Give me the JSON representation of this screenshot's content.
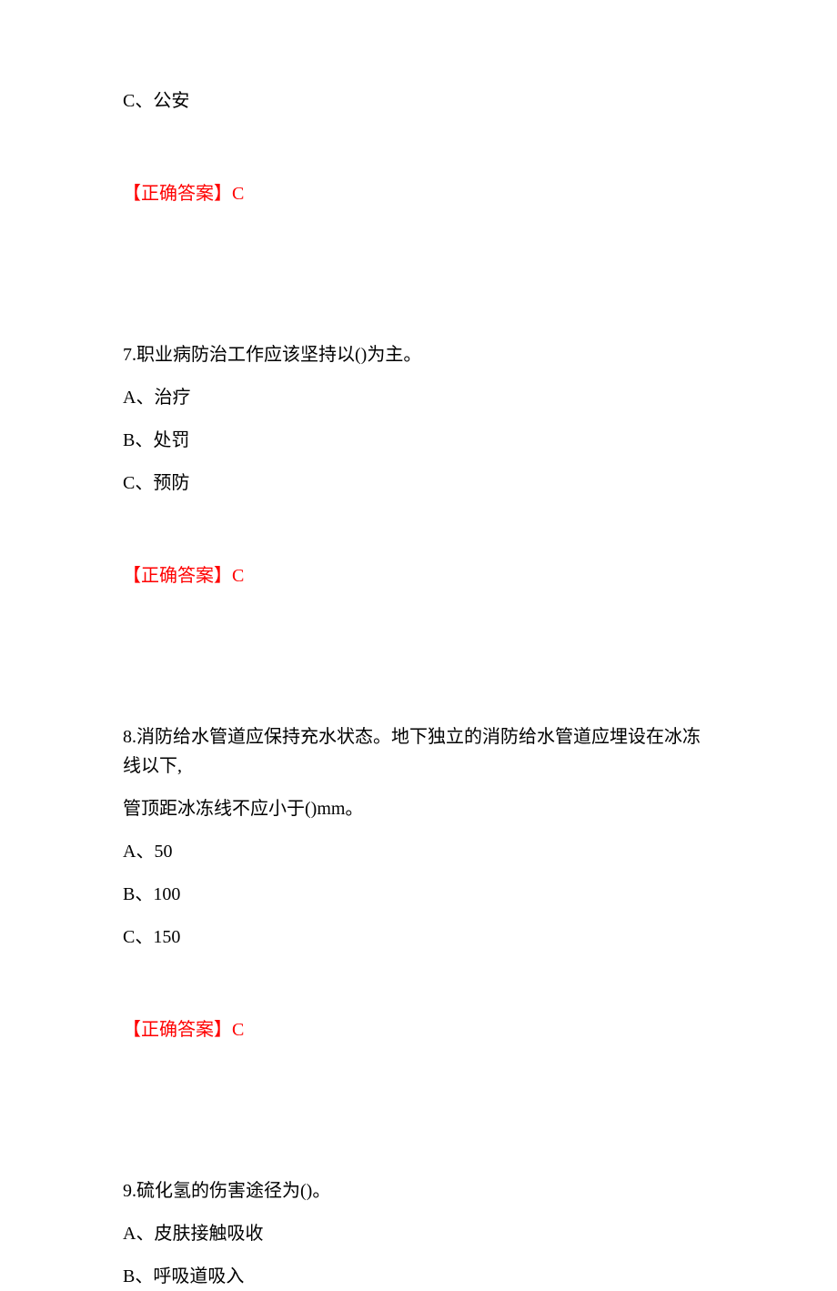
{
  "colors": {
    "page_bg": "#ffffff",
    "body_text": "#000000",
    "answer_text": "#ff0000"
  },
  "typography": {
    "body_fontsize_pt": 15,
    "body_font_family": "SimSun",
    "line_height": 1.6
  },
  "q6": {
    "option_c": "C、公安",
    "answer_label": "【正确答案】C"
  },
  "q7": {
    "stem": "7.职业病防治工作应该坚持以()为主。",
    "option_a": "A、治疗",
    "option_b": "B、处罚",
    "option_c": "C、预防",
    "answer_label": "【正确答案】C"
  },
  "q8": {
    "stem_line1": "8.消防给水管道应保持充水状态。地下独立的消防给水管道应埋设在冰冻线以下,",
    "stem_line2": "管顶距冰冻线不应小于()mm。",
    "option_a": "A、50",
    "option_b": "B、100",
    "option_c": "C、150",
    "answer_label": "【正确答案】C"
  },
  "q9": {
    "stem": "9.硫化氢的伤害途径为()。",
    "option_a": "A、皮肤接触吸收",
    "option_b": "B、呼吸道吸入"
  }
}
